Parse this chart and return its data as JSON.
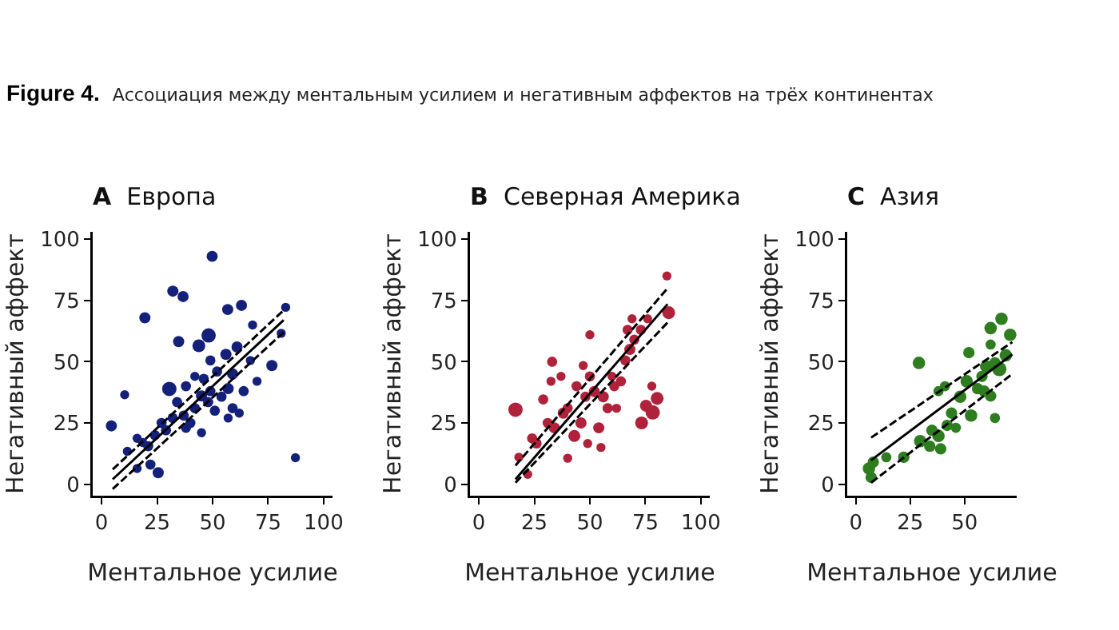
{
  "chart_data": [
    {
      "type": "bubble",
      "title": "A Европа",
      "xlabel": "Ментальное усилие",
      "ylabel": "Негативный аффект",
      "annotations": [
        "Figure 4.",
        "Ассоциация между ментальным усилием и негативным аффектов на трёх континентах"
      ],
      "xlim": [
        -4,
        104
      ],
      "ylim": [
        -4.7,
        103
      ],
      "xticks": [
        0,
        25,
        50,
        75,
        100
      ],
      "yticks": [
        0,
        25,
        50,
        75,
        100
      ],
      "marker": "circle",
      "grid": false,
      "series": [
        {
          "color": "#14217a",
          "x": [
            4.4,
            10.4,
            19.5,
            32.1,
            36.7,
            49.8,
            56.8,
            63,
            34.7,
            43.8,
            48.2,
            30.5,
            82.9,
            87.3,
            76.7,
            80.9,
            25.5,
            22,
            16,
            11.6,
            18.5,
            24,
            27,
            32,
            37,
            40,
            42,
            45,
            48,
            51,
            54,
            57,
            59,
            62,
            64,
            59,
            56,
            61,
            52,
            49,
            46,
            42,
            38,
            34,
            29,
            21,
            16,
            67,
            68,
            70,
            45,
            57,
            38,
            49
          ],
          "values": [
            23.8,
            36.5,
            67.9,
            78.8,
            76.6,
            93,
            71.3,
            73,
            58.2,
            56.5,
            60.7,
            38.9,
            72.2,
            10.8,
            48.4,
            61.6,
            4.7,
            8,
            6.4,
            13.4,
            17,
            20,
            25,
            27,
            28,
            25,
            31,
            36,
            33.5,
            30,
            35.7,
            39,
            31,
            29,
            38,
            45,
            53,
            56,
            46,
            50.5,
            43,
            44,
            40,
            33.5,
            22,
            15.5,
            18.7,
            50.5,
            65,
            42,
            21,
            27,
            23,
            38
          ],
          "sizes": [
            0.6,
            0.4,
            0.6,
            0.6,
            0.6,
            0.6,
            0.6,
            0.6,
            0.6,
            0.8,
            1,
            1,
            0.4,
            0.4,
            0.6,
            0.4,
            0.6,
            0.5,
            0.4,
            0.4,
            0.4,
            0.5,
            0.5,
            0.5,
            0.5,
            0.5,
            0.5,
            0.6,
            0.5,
            0.5,
            0.5,
            0.6,
            0.5,
            0.4,
            0.5,
            0.6,
            0.6,
            0.6,
            0.5,
            0.5,
            0.5,
            0.4,
            0.5,
            0.5,
            0.5,
            0.5,
            0.4,
            0.4,
            0.4,
            0.4,
            0.4,
            0.4,
            0.5,
            0.5
          ]
        },
        {
          "type": "line",
          "marker": "none",
          "color": "#000000",
          "line_style": "solid",
          "x": [
            5,
            82
          ],
          "values": [
            2,
            67
          ]
        },
        {
          "type": "line",
          "marker": "none",
          "color": "#000000",
          "line_style": "dashed",
          "x": [
            5,
            82
          ],
          "values": [
            6,
            71
          ]
        },
        {
          "type": "line",
          "marker": "none",
          "color": "#000000",
          "line_style": "dashed",
          "x": [
            5,
            82
          ],
          "values": [
            -2,
            62
          ]
        }
      ]
    },
    {
      "type": "bubble",
      "title": "B Северная Америка",
      "xlabel": "Ментальное усилие",
      "ylabel": "Негативный аффект",
      "xlim": [
        -4,
        104
      ],
      "ylim": [
        -4.7,
        103
      ],
      "xticks": [
        0,
        25,
        50,
        75,
        100
      ],
      "yticks": [
        0,
        25,
        50,
        75,
        100
      ],
      "marker": "circle",
      "grid": false,
      "series": [
        {
          "color": "#b0223a",
          "x": [
            16.5,
            33,
            50,
            84.7,
            85.5,
            73.3,
            78.3,
            80.3,
            75.3,
            77.9,
            55,
            40,
            22,
            18,
            24,
            29,
            32.5,
            34,
            38,
            43,
            46,
            44,
            48,
            52,
            54,
            56,
            58,
            61,
            66,
            68,
            70,
            67,
            73,
            76,
            64,
            60,
            50,
            37,
            31,
            26,
            49,
            40,
            47,
            62,
            69
          ],
          "values": [
            30.4,
            50,
            61,
            85,
            70,
            25,
            29.3,
            35,
            32,
            40,
            15,
            10.6,
            4,
            11,
            18.7,
            34.6,
            42,
            23,
            29,
            19.7,
            25,
            40,
            35.7,
            37.8,
            23,
            35.7,
            31,
            40,
            50.5,
            55,
            59,
            63,
            63,
            67.5,
            42,
            44,
            44,
            44,
            25,
            16.6,
            16.6,
            31,
            48.4,
            31,
            67.5
          ],
          "sizes": [
            1,
            0.5,
            0.4,
            0.4,
            0.8,
            0.8,
            1,
            0.8,
            0.7,
            0.4,
            0.4,
            0.4,
            0.4,
            0.4,
            0.5,
            0.5,
            0.4,
            0.6,
            0.6,
            0.7,
            0.6,
            0.5,
            0.5,
            0.6,
            0.6,
            0.6,
            0.5,
            0.5,
            0.5,
            0.6,
            0.5,
            0.5,
            0.5,
            0.4,
            0.5,
            0.4,
            0.5,
            0.4,
            0.5,
            0.5,
            0.4,
            0.5,
            0.4,
            0.4,
            0.4
          ]
        },
        {
          "type": "line",
          "marker": "none",
          "color": "#000000",
          "line_style": "solid",
          "x": [
            16.5,
            85
          ],
          "values": [
            2,
            73.5
          ]
        },
        {
          "type": "line",
          "marker": "none",
          "color": "#000000",
          "line_style": "dashed",
          "x": [
            16.5,
            85
          ],
          "values": [
            7.6,
            80
          ]
        },
        {
          "type": "line",
          "marker": "none",
          "color": "#000000",
          "line_style": "dashed",
          "x": [
            16.5,
            85
          ],
          "values": [
            0.6,
            66
          ]
        }
      ]
    },
    {
      "type": "bubble",
      "title": "C Азия",
      "xlabel": "Ментальное усилие",
      "ylabel": "Негативный аффект",
      "xlim": [
        -4,
        74
      ],
      "ylim": [
        -4.7,
        103
      ],
      "xticks": [
        0,
        25,
        50
      ],
      "yticks": [
        0,
        25,
        50,
        75,
        100
      ],
      "marker": "circle",
      "grid": false,
      "series": [
        {
          "color": "#2e7d1e",
          "x": [
            29,
            62,
            67,
            71,
            52,
            6,
            7,
            8,
            14,
            22,
            29.6,
            34,
            38,
            39,
            42,
            44,
            46,
            48,
            51,
            53,
            56,
            58,
            60,
            64,
            66,
            64,
            59,
            62,
            38,
            41,
            35,
            62,
            69
          ],
          "values": [
            49.5,
            63.7,
            67.5,
            61,
            53.7,
            6.4,
            2.8,
            9,
            11,
            11,
            17.6,
            15.5,
            19.7,
            14.4,
            24,
            29,
            23,
            35.7,
            42,
            28,
            39,
            44,
            48,
            49.5,
            47,
            27,
            38,
            57,
            38,
            40,
            22,
            36,
            52.6
          ],
          "sizes": [
            0.75,
            0.75,
            0.75,
            0.75,
            0.63,
            0.75,
            0.63,
            0.63,
            0.5,
            0.63,
            0.75,
            0.63,
            0.75,
            0.63,
            0.63,
            0.63,
            0.5,
            0.75,
            0.75,
            0.75,
            0.63,
            0.63,
            0.75,
            0.63,
            1,
            0.5,
            0.63,
            0.5,
            0.5,
            0.5,
            0.63,
            0.63,
            0.75
          ]
        },
        {
          "type": "line",
          "marker": "none",
          "color": "#000000",
          "line_style": "solid",
          "x": [
            7,
            72
          ],
          "values": [
            9.8,
            53
          ]
        },
        {
          "type": "line",
          "marker": "none",
          "color": "#000000",
          "line_style": "dashed",
          "x": [
            7,
            72
          ],
          "values": [
            19,
            58
          ]
        },
        {
          "type": "line",
          "marker": "none",
          "color": "#000000",
          "line_style": "dashed",
          "x": [
            7,
            72
          ],
          "values": [
            0.6,
            45
          ]
        }
      ]
    }
  ]
}
